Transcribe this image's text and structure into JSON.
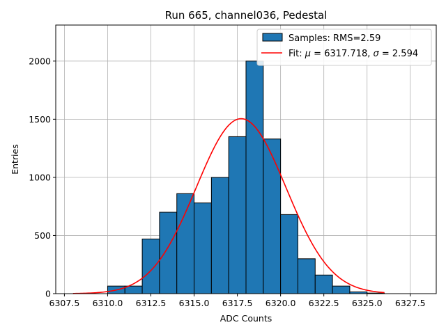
{
  "chart_data": {
    "type": "bar",
    "title": "Run 665, channel036, Pedestal",
    "xlabel": "ADC Counts",
    "ylabel": "Entries",
    "xlim": [
      6307.0,
      6329.0
    ],
    "ylim": [
      0,
      2310
    ],
    "xticks": [
      6307.5,
      6310.0,
      6312.5,
      6315.0,
      6317.5,
      6320.0,
      6322.5,
      6325.0,
      6327.5
    ],
    "xtick_labels": [
      "6307.5",
      "6310.0",
      "6312.5",
      "6315.0",
      "6317.5",
      "6320.0",
      "6322.5",
      "6325.0",
      "6327.5"
    ],
    "yticks": [
      0,
      500,
      1000,
      1500,
      2000
    ],
    "ytick_labels": [
      "0",
      "500",
      "1000",
      "1500",
      "2000"
    ],
    "grid": true,
    "legend_position": "top-right",
    "bar_color": "#1f77b4",
    "fit_color": "#ff0000",
    "histogram": {
      "name": "Samples: RMS=2.59",
      "bin_edges": [
        6310,
        6311,
        6312,
        6313,
        6314,
        6315,
        6316,
        6317,
        6318,
        6319,
        6320,
        6321,
        6322,
        6323,
        6324,
        6325,
        6326
      ],
      "counts": [
        65,
        65,
        470,
        700,
        860,
        780,
        1000,
        1350,
        2000,
        1330,
        680,
        300,
        160,
        65,
        15,
        5
      ]
    },
    "fit": {
      "legend_prefix": "Fit: ",
      "mu_symbol": "μ",
      "mu_value": " = 6317.718, ",
      "sigma_symbol": "σ",
      "sigma_value": " = 2.594",
      "mu": 6317.718,
      "sigma": 2.594,
      "amplitude": 1505,
      "x_range": [
        6308.0,
        6326.0
      ]
    }
  }
}
